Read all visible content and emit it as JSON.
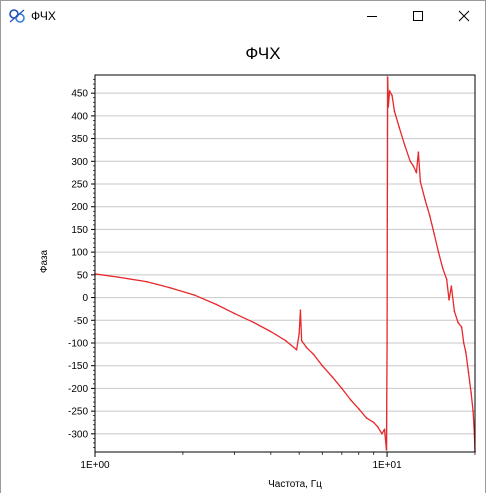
{
  "window": {
    "title": "ФЧХ",
    "icons": {
      "app": "app-logo-icon",
      "minimize": "minimize-icon",
      "maximize": "maximize-icon",
      "close": "close-icon"
    }
  },
  "colors": {
    "series": "#e8282b",
    "grid": "#c8c8c8",
    "axis": "#000000"
  },
  "chart_data": {
    "type": "line",
    "title": "ФЧХ",
    "xlabel": "Частота, Гц",
    "ylabel": "Фаза",
    "xscale": "log",
    "xlim": [
      1,
      20
    ],
    "ylim": [
      -340,
      490
    ],
    "grid": {
      "horizontal": true,
      "vertical": false
    },
    "legend": "none",
    "x_tick_values": [
      1,
      10
    ],
    "x_tick_labels": [
      "1E+00",
      "1E+01"
    ],
    "y_ticks": [
      -300,
      -250,
      -200,
      -150,
      -100,
      -50,
      0,
      50,
      100,
      150,
      200,
      250,
      300,
      350,
      400,
      450
    ],
    "series": [
      {
        "x": [
          1,
          1.2,
          1.5,
          1.8,
          2.2,
          2.6,
          3.0,
          3.5,
          4.0,
          4.5,
          4.9,
          5.0,
          5.05,
          5.1,
          5.3,
          5.6,
          6.0,
          6.5,
          7.0,
          7.5,
          8.0,
          8.5,
          9.0,
          9.3,
          9.6,
          9.8,
          9.9,
          9.95,
          10.0,
          10.02,
          10.05,
          10.1,
          10.2,
          10.4,
          10.6,
          11.0,
          11.5,
          12.0,
          12.3,
          12.6,
          12.8,
          13.0,
          13.5,
          14.0,
          14.5,
          15.0,
          15.5,
          16.0,
          16.3,
          16.6,
          17.0,
          17.5,
          18.0,
          18.3,
          18.6,
          19.0,
          19.4,
          19.7,
          19.9,
          20.0
        ],
        "y": [
          52,
          45,
          35,
          22,
          5,
          -15,
          -35,
          -55,
          -75,
          -95,
          -115,
          -80,
          -28,
          -95,
          -110,
          -125,
          -150,
          -175,
          -200,
          -225,
          -245,
          -265,
          -275,
          -285,
          -300,
          -290,
          -320,
          -335,
          -100,
          170,
          485,
          420,
          455,
          445,
          410,
          375,
          335,
          300,
          290,
          275,
          320,
          255,
          215,
          180,
          140,
          100,
          65,
          40,
          -5,
          25,
          -30,
          -55,
          -65,
          -100,
          -120,
          -165,
          -210,
          -250,
          -300,
          -340
        ]
      }
    ]
  }
}
